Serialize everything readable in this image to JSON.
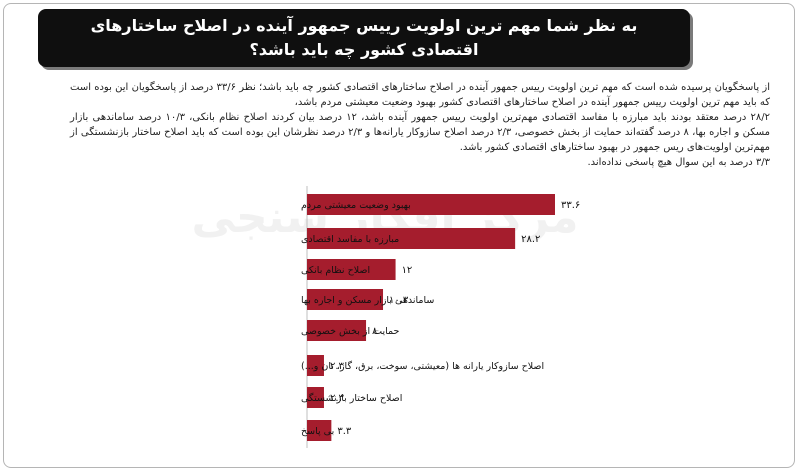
{
  "title": "به نظر شما مهم ترین اولویت رییس جمهور آینده در اصلاح ساختارهای اقتصادی کشور چه باید باشد؟",
  "description": [
    "از پاسخگویان پرسیده شده است که مهم ترین اولویت رییس جمهور آینده در اصلاح ساختارهای اقتصادی کشور چه باید باشد؛ نظر ۳۳/۶ درصد از پاسخگویان این بوده است که باید مهم ترین اولویت رییس جمهور آینده در اصلاح ساختارهای اقتصادی کشور بهبود وضعیت معیشتی مردم باشد،",
    "۲۸/۲ درصد معتقد بودند باید مبارزه با مفاسد اقتصادی مهم‌ترین اولویت رییس جمهور آینده باشد، ۱۲ درصد بیان کردند اصلاح نظام بانکی، ۱۰/۳ درصد ساماندهی بازار مسکن و اجاره بها، ۸ درصد گفته‌اند حمایت از بخش خصوصی، ۲/۳ درصد اصلاح سازوکار یارانه‌ها و ۲/۳ درصد نظرشان این بوده است که باید اصلاح ساختار بازنشستگی از مهم‌ترین اولویت‌های ریس جمهور در بهبود ساختارهای اقتصادی کشور باشد.",
    "۳/۳ درصد به این سوال هیچ پاسخی نداده‌اند."
  ],
  "watermark": "مرکز افکار سنجی",
  "chart_data": {
    "type": "bar",
    "orientation": "horizontal",
    "categories": [
      "بهبود وضعیت معیشتی مردم",
      "مبارزه با مفاسد اقتصادی",
      "اصلاح نظام بانکی",
      "ساماندهی بازار مسکن و اجاره بها",
      "حمایت از بخش خصوصی",
      "اصلاح سازوکار یارانه ها (معیشتی، سوخت، برق، گاز، نان و...)",
      "اصلاح ساختار بازنشستگی",
      "بی پاسخ"
    ],
    "values": [
      33.6,
      28.2,
      12,
      10.3,
      8,
      2.3,
      2.3,
      3.3
    ],
    "value_labels": [
      "۳۳.۶",
      "۲۸.۲",
      "۱۲",
      "۱۰.۳",
      "۸",
      "۲.۳",
      "۲.۳",
      "۳.۳"
    ],
    "bar_color": "#a51d2d",
    "xlim": [
      0,
      33.6
    ],
    "grid": false,
    "legend": "none"
  }
}
